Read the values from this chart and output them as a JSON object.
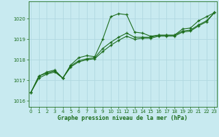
{
  "title": "Graphe pression niveau de la mer (hPa)",
  "background_color": "#c8eaf0",
  "grid_color": "#b0d8e0",
  "line_color": "#1a6b1a",
  "x_values": [
    0,
    1,
    2,
    3,
    4,
    5,
    6,
    7,
    8,
    9,
    10,
    11,
    12,
    13,
    14,
    15,
    16,
    17,
    18,
    19,
    20,
    21,
    22,
    23
  ],
  "series1": [
    1016.4,
    1017.2,
    1017.4,
    1017.5,
    1017.1,
    1017.75,
    1018.1,
    1018.2,
    1018.15,
    1019.0,
    1020.1,
    1020.25,
    1020.2,
    1019.35,
    1019.3,
    1019.15,
    1019.2,
    1019.2,
    1019.2,
    1019.5,
    1019.55,
    1019.9,
    1020.1,
    1020.3
  ],
  "series2": [
    1016.4,
    1017.2,
    1017.35,
    1017.45,
    1017.1,
    1017.7,
    1017.95,
    1018.05,
    1018.1,
    1018.55,
    1018.85,
    1019.1,
    1019.3,
    1019.1,
    1019.1,
    1019.1,
    1019.2,
    1019.2,
    1019.2,
    1019.4,
    1019.45,
    1019.7,
    1019.9,
    1020.3
  ],
  "series3": [
    1016.4,
    1017.1,
    1017.3,
    1017.4,
    1017.1,
    1017.65,
    1017.9,
    1018.0,
    1018.05,
    1018.4,
    1018.7,
    1018.95,
    1019.15,
    1019.0,
    1019.05,
    1019.05,
    1019.15,
    1019.15,
    1019.15,
    1019.35,
    1019.4,
    1019.65,
    1019.85,
    1020.3
  ],
  "ylim": [
    1015.7,
    1020.85
  ],
  "yticks": [
    1016,
    1017,
    1018,
    1019,
    1020
  ],
  "xlim": [
    -0.3,
    23.3
  ]
}
